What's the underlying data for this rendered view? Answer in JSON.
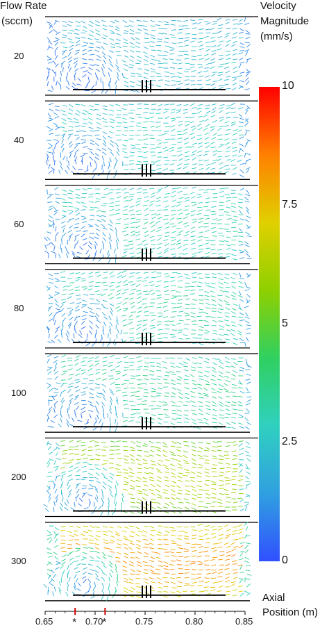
{
  "header": {
    "flow_title": "Flow Rate",
    "flow_unit": "(sccm)",
    "velocity_title": "Velocity",
    "velocity_sub": "Magnitude",
    "velocity_unit": "(mm/s)"
  },
  "panels": [
    {
      "flow_rate": "20",
      "mean_speed": 2.0,
      "field": "weak"
    },
    {
      "flow_rate": "40",
      "mean_speed": 2.6,
      "field": "medium"
    },
    {
      "flow_rate": "60",
      "mean_speed": 3.0,
      "field": "medium"
    },
    {
      "flow_rate": "80",
      "mean_speed": 3.2,
      "field": "medium"
    },
    {
      "flow_rate": "100",
      "mean_speed": 3.4,
      "field": "medium"
    },
    {
      "flow_rate": "200",
      "mean_speed": 5.6,
      "field": "strong"
    },
    {
      "flow_rate": "300",
      "mean_speed": 7.5,
      "field": "strong"
    }
  ],
  "colorbar": {
    "min": 0,
    "max": 10,
    "ticks": [
      "10",
      "7.5",
      "5",
      "2.5",
      "0"
    ],
    "colors": [
      "#ff0000",
      "#ff8000",
      "#e0d000",
      "#8fd000",
      "#30d060",
      "#30d0c0",
      "#30a0e0",
      "#3050ff"
    ]
  },
  "axis": {
    "title_line1": "Axial",
    "title_line2": "Position (m)",
    "ticks": [
      "0.65",
      "0.70",
      "0.75",
      "0.80",
      "0.85"
    ],
    "markers": [
      "*",
      "*"
    ],
    "marker_color": "#d00000"
  }
}
